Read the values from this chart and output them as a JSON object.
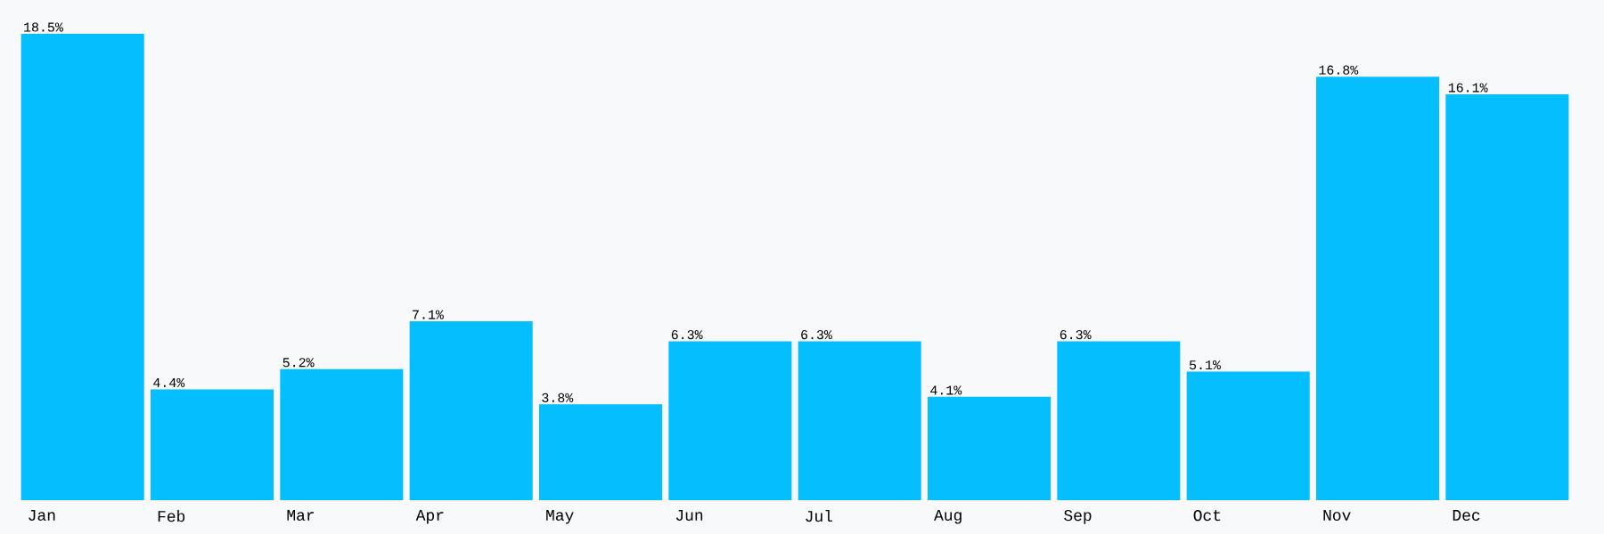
{
  "chart_data": {
    "type": "bar",
    "categories": [
      "Jan",
      "Feb",
      "Mar",
      "Apr",
      "May",
      "Jun",
      "Jul",
      "Aug",
      "Sep",
      "Oct",
      "Nov",
      "Dec"
    ],
    "values": [
      18.5,
      4.4,
      5.2,
      7.1,
      3.8,
      6.3,
      6.3,
      4.1,
      6.3,
      5.1,
      16.8,
      16.1
    ],
    "value_labels": [
      "18.5%",
      "4.4%",
      "5.2%",
      "7.1%",
      "3.8%",
      "6.3%",
      "6.3%",
      "4.1%",
      "6.3%",
      "5.1%",
      "16.8%",
      "16.1%"
    ],
    "color": "#04befe"
  }
}
